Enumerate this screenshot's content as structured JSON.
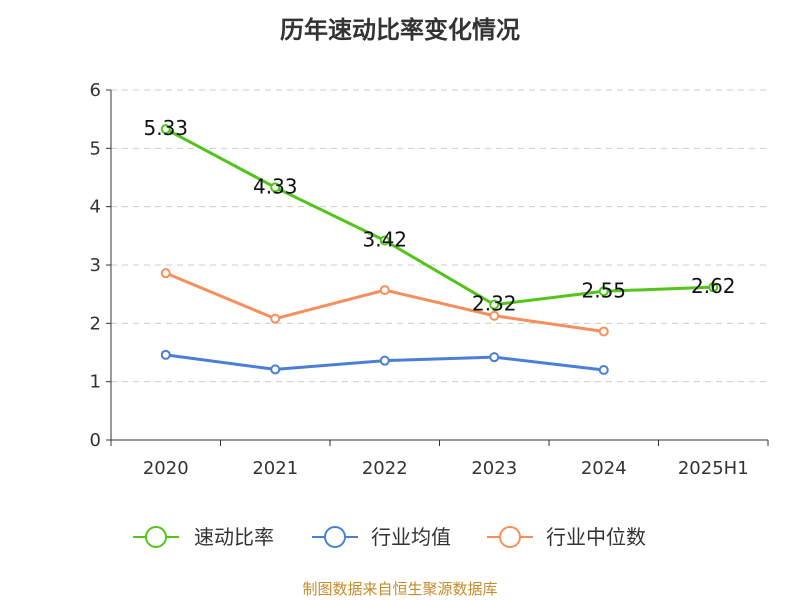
{
  "chart_data": {
    "type": "line",
    "title": "历年速动比率变化情况",
    "categories": [
      "2020",
      "2021",
      "2022",
      "2023",
      "2024",
      "2025H1"
    ],
    "ylim": [
      0,
      6
    ],
    "yticks": [
      0,
      1,
      2,
      3,
      4,
      5,
      6
    ],
    "grid": true,
    "legend_position": "bottom",
    "series": [
      {
        "name": "速动比率",
        "color": "#52c41a",
        "values": [
          5.33,
          4.33,
          3.42,
          2.32,
          2.55,
          2.62
        ],
        "show_labels": true
      },
      {
        "name": "行业均值",
        "color": "#4a7fd6",
        "values": [
          1.46,
          1.21,
          1.36,
          1.42,
          1.2,
          null
        ],
        "show_labels": false
      },
      {
        "name": "行业中位数",
        "color": "#f58f5b",
        "values": [
          2.86,
          2.08,
          2.57,
          2.13,
          1.86,
          null
        ],
        "show_labels": false
      }
    ],
    "source": "制图数据来自恒生聚源数据库"
  }
}
